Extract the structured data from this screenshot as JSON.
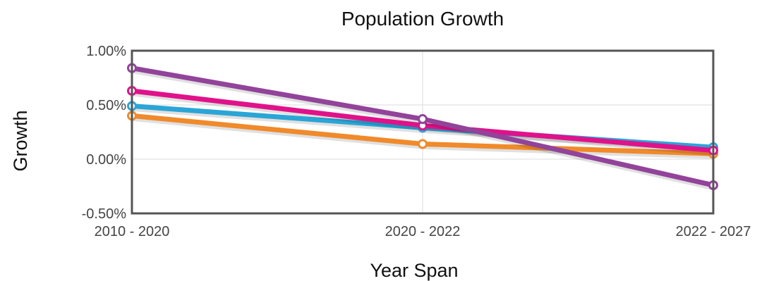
{
  "chart_data": {
    "type": "line",
    "title": "Population Growth",
    "xlabel": "Year Span",
    "ylabel": "Growth",
    "categories": [
      "2010 - 2020",
      "2020 - 2022",
      "2022 - 2027"
    ],
    "ylim": [
      -0.5,
      1.0
    ],
    "yticks": [
      1.0,
      0.5,
      0.0,
      -0.5
    ],
    "ytick_labels": [
      "1.00%",
      "0.50%",
      "0.00%",
      "-0.50%"
    ],
    "grid": true,
    "legend": "none",
    "series": [
      {
        "color": "#f08a2a",
        "values": [
          0.4,
          0.14,
          0.05
        ]
      },
      {
        "color": "#2aa5d6",
        "values": [
          0.49,
          0.29,
          0.11
        ]
      },
      {
        "color": "#e0128a",
        "values": [
          0.63,
          0.31,
          0.08
        ]
      },
      {
        "color": "#92439a",
        "values": [
          0.84,
          0.37,
          -0.24
        ]
      }
    ]
  }
}
